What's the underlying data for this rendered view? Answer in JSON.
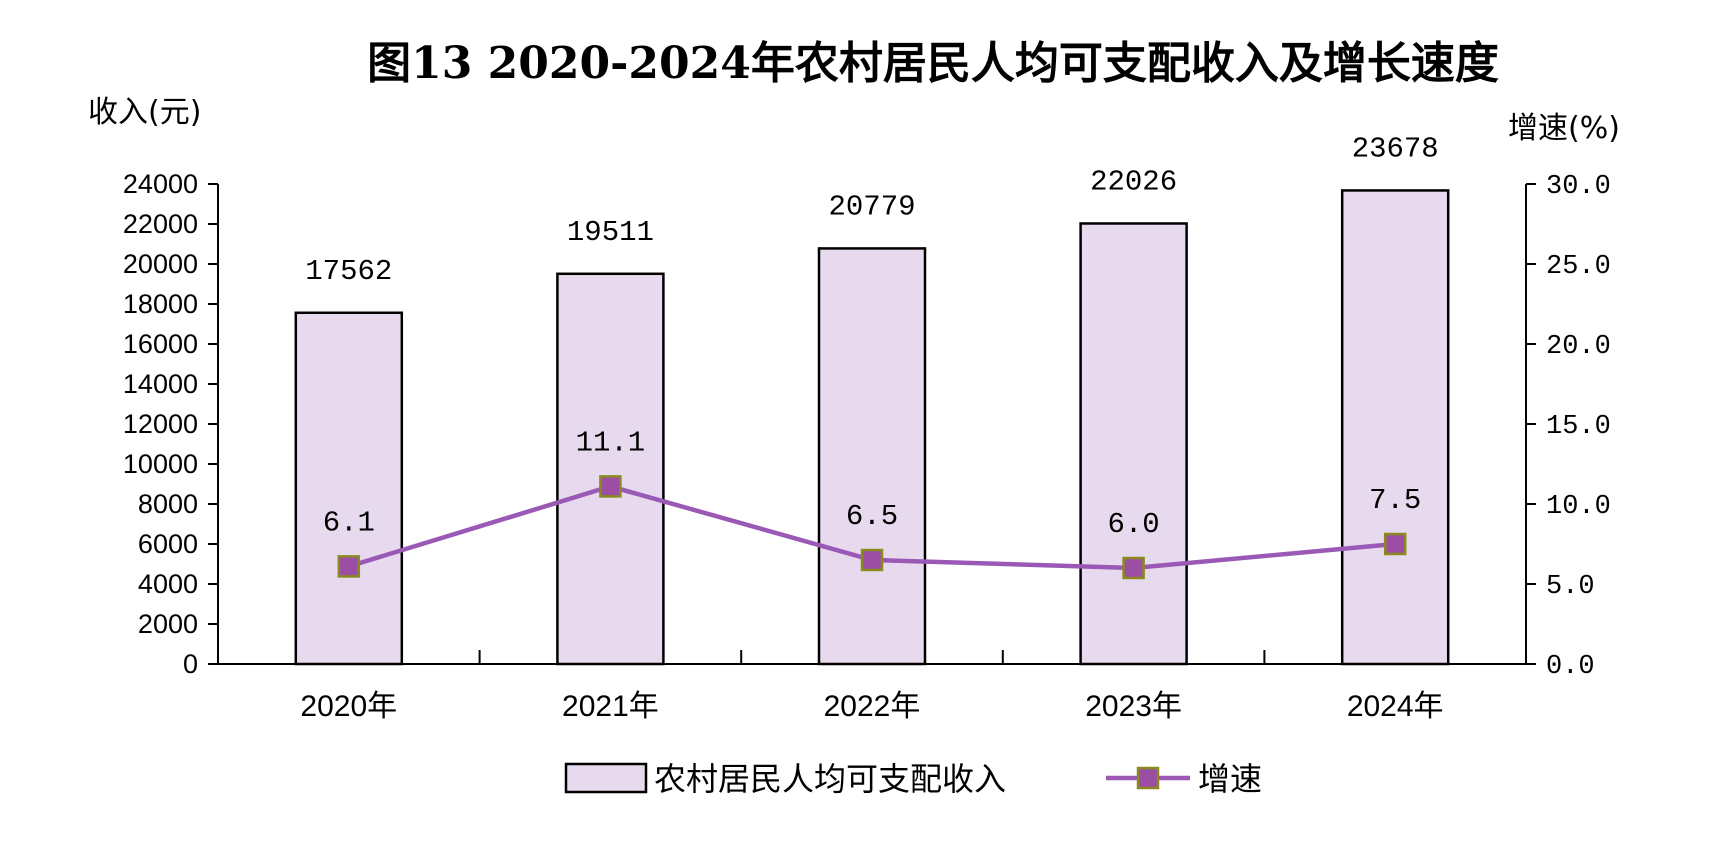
{
  "chart_data": {
    "type": "bar",
    "title": "图13 2020-2024年农村居民人均可支配收入及增长速度",
    "ylabel_left": "收入(元)",
    "ylabel_right": "增速(%)",
    "categories": [
      "2020年",
      "2021年",
      "2022年",
      "2023年",
      "2024年"
    ],
    "ylim_left": [
      0,
      24000
    ],
    "ylim_right": [
      0,
      30
    ],
    "yticks_left": [
      "0",
      "2000",
      "4000",
      "6000",
      "8000",
      "10000",
      "12000",
      "14000",
      "16000",
      "18000",
      "20000",
      "22000",
      "24000"
    ],
    "yticks_right": [
      "0.0",
      "5.0",
      "10.0",
      "15.0",
      "20.0",
      "25.0",
      "30.0"
    ],
    "series": [
      {
        "name": "农村居民人均可支配收入",
        "kind": "bar",
        "axis": "left",
        "values": [
          17562,
          19511,
          20779,
          22026,
          23678
        ],
        "labels": [
          "17562",
          "19511",
          "20779",
          "22026",
          "23678"
        ],
        "color": "#e8daee"
      },
      {
        "name": "增速",
        "kind": "line",
        "axis": "right",
        "values": [
          6.1,
          11.1,
          6.5,
          6.0,
          7.5
        ],
        "labels": [
          "6.1",
          "11.1",
          "6.5",
          "6.0",
          "7.5"
        ],
        "color": "#9b59b6",
        "marker_color": "#9c4ea4",
        "marker_border": "#8a8a1e"
      }
    ],
    "grid": false,
    "legend_position": "bottom"
  }
}
